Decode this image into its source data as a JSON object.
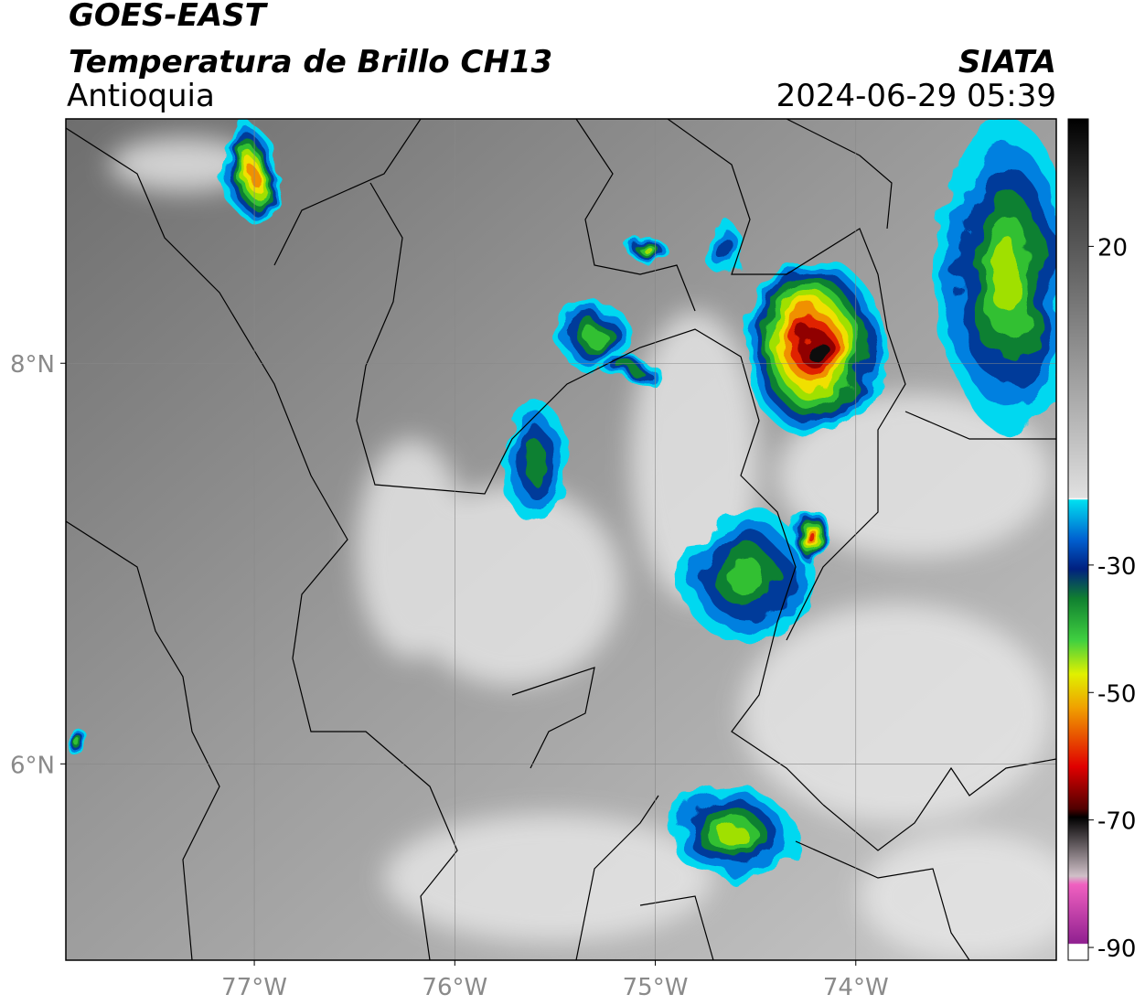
{
  "header": {
    "title": "GOES-EAST",
    "subtitle": "Temperatura de Brillo CH13",
    "region": "Antioquia",
    "source": "SIATA",
    "datetime": "2024-06-29 05:39"
  },
  "map": {
    "lon_range": [
      -77.94,
      -73.0
    ],
    "lat_range": [
      5.02,
      9.22
    ],
    "lon_ticks": [
      {
        "value": -77,
        "label": "77°W"
      },
      {
        "value": -76,
        "label": "76°W"
      },
      {
        "value": -75,
        "label": "75°W"
      },
      {
        "value": -74,
        "label": "74°W"
      }
    ],
    "lat_ticks": [
      {
        "value": 6,
        "label": "6°N"
      },
      {
        "value": 8,
        "label": "8°N"
      }
    ],
    "grid": true
  },
  "colorbar": {
    "range": [
      -92,
      40
    ],
    "ticks": [
      20,
      -30,
      -50,
      -70,
      -90
    ]
  }
}
